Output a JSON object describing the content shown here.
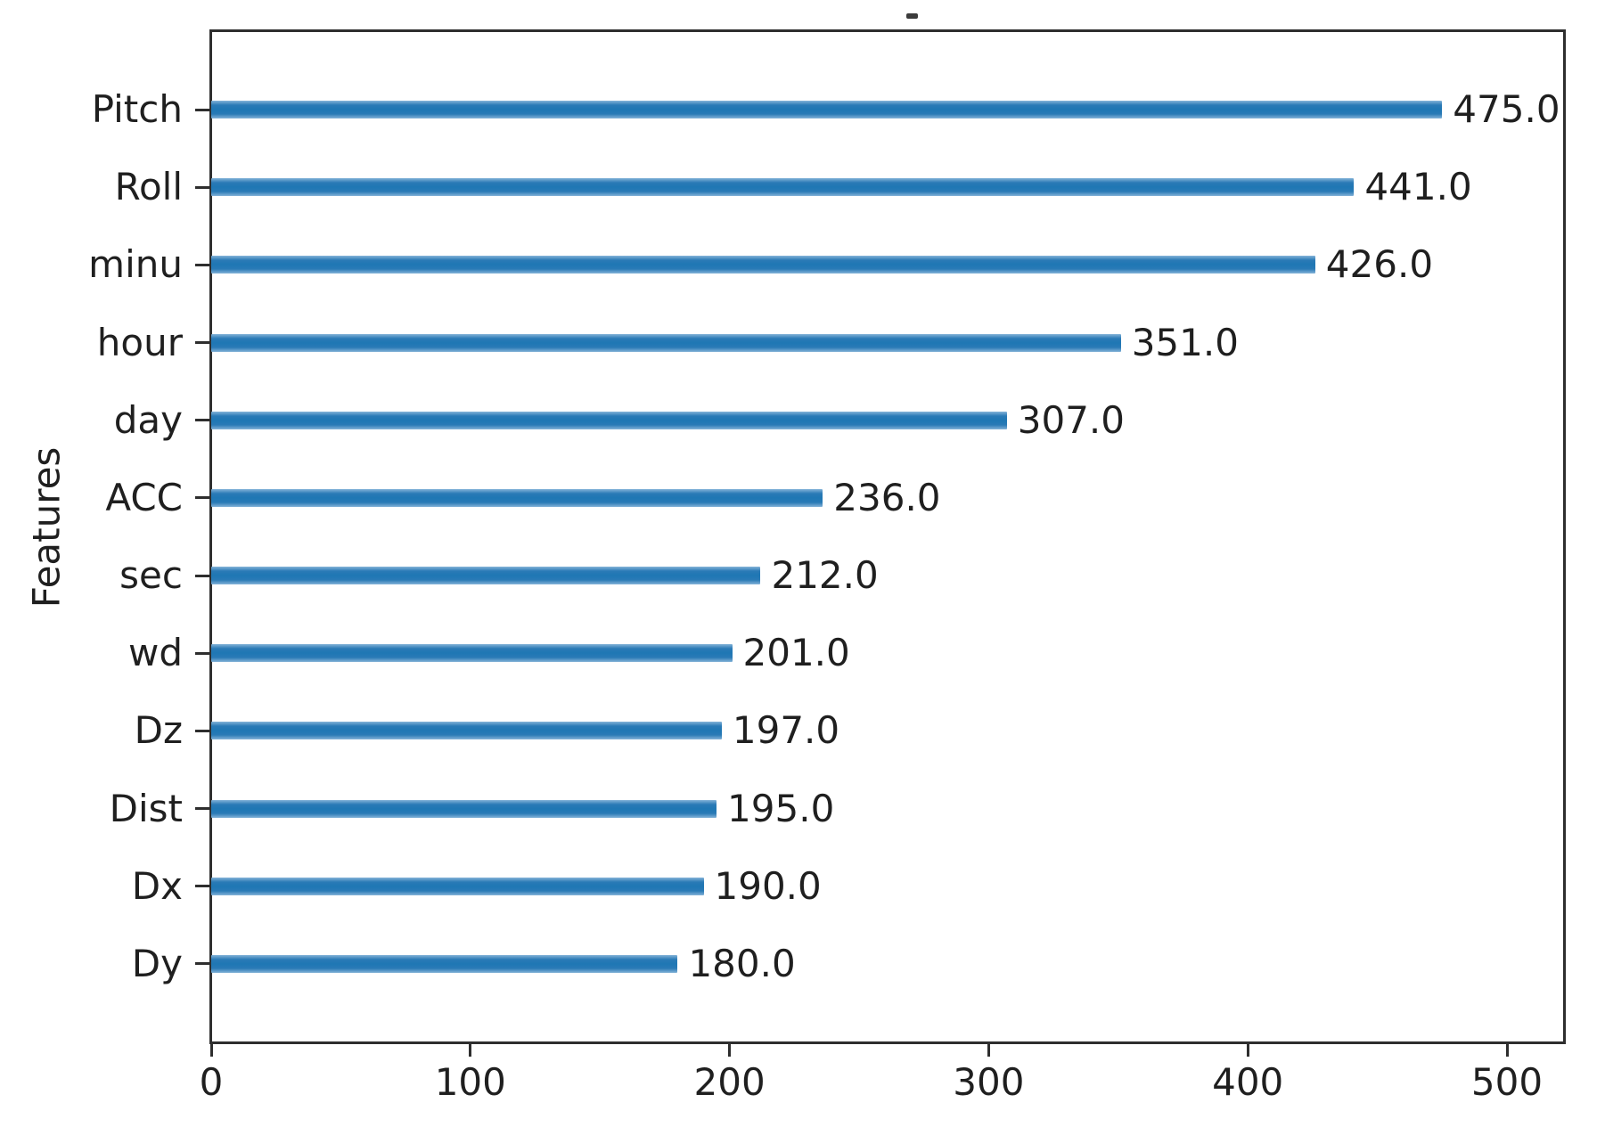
{
  "figure": {
    "ylabel": "Features",
    "title_mark_glyph": "dash"
  },
  "chart_data": {
    "type": "bar",
    "orientation": "horizontal",
    "title": "-",
    "xlabel": "",
    "ylabel": "Features",
    "categories": [
      "Pitch",
      "Roll",
      "minu",
      "hour",
      "day",
      "ACC",
      "sec",
      "wd",
      "Dz",
      "Dist",
      "Dx",
      "Dy"
    ],
    "values": [
      475.0,
      441.0,
      426.0,
      351.0,
      307.0,
      236.0,
      212.0,
      201.0,
      197.0,
      195.0,
      190.0,
      180.0
    ],
    "value_labels": [
      "475.0",
      "441.0",
      "426.0",
      "351.0",
      "307.0",
      "236.0",
      "212.0",
      "201.0",
      "197.0",
      "195.0",
      "190.0",
      "180.0"
    ],
    "x_ticks": [
      0,
      100,
      200,
      300,
      400,
      500
    ],
    "x_tick_labels": [
      "0",
      "100",
      "200",
      "300",
      "400",
      "500"
    ],
    "xlim": [
      0,
      522
    ],
    "grid": false,
    "legend": null,
    "bar_color": "#1f77b4",
    "axis_color": "#2e2e2e",
    "text_color": "#1f1f1f"
  }
}
